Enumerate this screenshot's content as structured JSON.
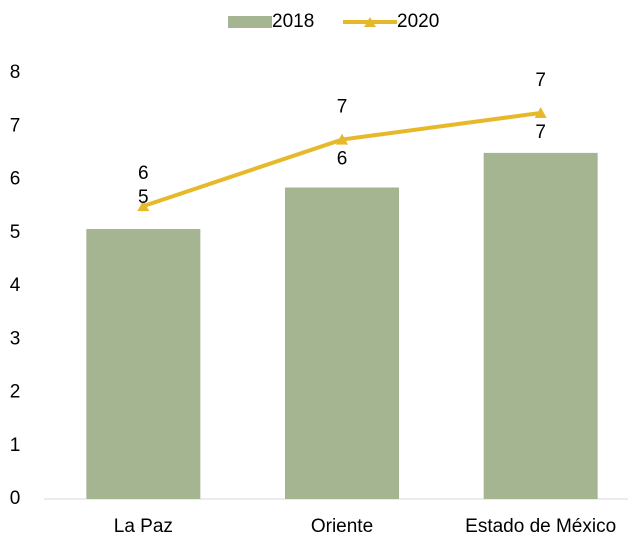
{
  "chart_data": {
    "type": "bar_line",
    "categories": [
      "La Paz",
      "Oriente",
      "Estado de México"
    ],
    "series": [
      {
        "name": "2018",
        "type": "bar",
        "color": "#a5b592",
        "values": [
          5.07,
          5.85,
          6.5
        ],
        "value_labels": [
          "5",
          "6",
          "7"
        ]
      },
      {
        "name": "2020",
        "type": "line",
        "color": "#e6b92a",
        "values": [
          5.5,
          6.75,
          7.25
        ],
        "value_labels": [
          "6",
          "7",
          "7"
        ]
      }
    ],
    "ylim": [
      0,
      8
    ],
    "yticks": [
      0,
      1,
      2,
      3,
      4,
      5,
      6,
      7,
      8
    ],
    "legend": "top"
  }
}
